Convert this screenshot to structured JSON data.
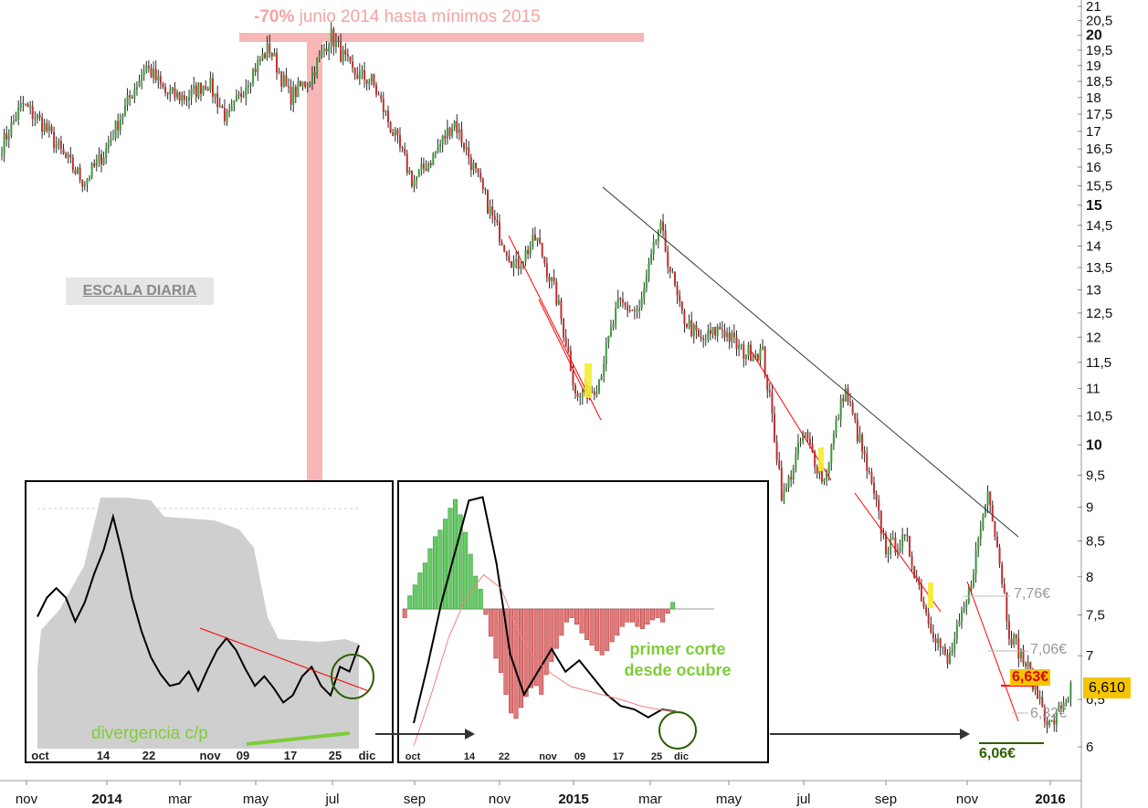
{
  "headline": {
    "bold": "-70%",
    "text": " junio 2014 hasta mínimos 2015"
  },
  "scale_label": "ESCALA DIARIA",
  "last_price": "6,610",
  "levels": {
    "l776": "7,76€",
    "l706": "7,06€",
    "l663": "6,63€",
    "l632": "6,32€",
    "l606": "6,06€"
  },
  "notes": {
    "divergence": "divergencia c/p",
    "first_cross": "primer corte desde ocubre"
  },
  "colors": {
    "up": "#3a9a3a",
    "down": "#c03030",
    "trend_red": "#ff0000",
    "trend_black": "#333333",
    "headline": "#f4a3a3",
    "level_grey": "#999999",
    "price_tag": "#f4c500",
    "hist_up": "#66cc66",
    "hist_down": "#e07a7a",
    "circle": "#2e5e00"
  },
  "chart_data": [
    {
      "type": "line",
      "title": "",
      "x_ticks": [
        "nov",
        "2014",
        "mar",
        "may",
        "jul",
        "sep",
        "nov",
        "2015",
        "mar",
        "may",
        "jul",
        "sep",
        "nov",
        "2016"
      ],
      "y_ticks": [
        "21",
        "20,5",
        "20",
        "19,5",
        "19",
        "18,5",
        "18",
        "17,5",
        "17",
        "16,5",
        "16",
        "15,5",
        "15",
        "14,5",
        "14",
        "13,5",
        "13",
        "12,5",
        "12",
        "11,5",
        "11",
        "10,5",
        "10",
        "9,5",
        "9",
        "8,5",
        "8",
        "7,5",
        "7",
        "6,5",
        "6"
      ],
      "bold_y_ticks": [
        "20",
        "15",
        "10"
      ],
      "y_scale": "log",
      "ylim": [
        5.8,
        21.2
      ],
      "grid": false,
      "series": [
        {
          "values": [
            16.6,
            17.8,
            17.2,
            16.3,
            15.6,
            16.4,
            17.7,
            19.0,
            18.1,
            18.0,
            18.5,
            17.3,
            18.6,
            19.6,
            18.0,
            18.6,
            20.0,
            18.8,
            18.5,
            17.0,
            15.6,
            16.3,
            17.3,
            15.9,
            14.5,
            13.5,
            14.2,
            12.8,
            10.8,
            11.1,
            12.7,
            12.5,
            14.5,
            12.5,
            11.9,
            12.2,
            11.7,
            11.7,
            9.1,
            10.2,
            9.4,
            11.0,
            9.7,
            8.4,
            8.5,
            7.5,
            6.9,
            7.7,
            9.3,
            7.3,
            6.8,
            6.2,
            6.61
          ]
        }
      ],
      "annotations": [
        "Trend lines drawn; horizontal levels 7,76 / 7,06 / 6,63 / 6,32 / 6,06"
      ]
    },
    {
      "type": "line",
      "title": "",
      "x_ticks": [
        "oct",
        "14",
        "22",
        "nov",
        "09",
        "17",
        "25",
        "dic"
      ],
      "ylim": [
        0,
        100
      ],
      "series": [
        {
          "values": [
            50,
            58,
            62,
            58,
            48,
            56,
            68,
            78,
            92,
            76,
            58,
            44,
            33,
            26,
            21,
            22,
            27,
            19,
            28,
            36,
            41,
            36,
            28,
            21,
            25,
            20,
            14,
            17,
            25,
            29,
            21,
            17,
            29,
            27,
            38
          ]
        },
        {
          "values": [
            42,
            50,
            80,
            85,
            96,
            98,
            99,
            98,
            97,
            96,
            95,
            93,
            90,
            85,
            70,
            55,
            42,
            38,
            36,
            35,
            35,
            34,
            35,
            36
          ]
        }
      ]
    },
    {
      "type": "bar",
      "title": "",
      "x_ticks": [
        "oct",
        "14",
        "22",
        "nov",
        "09",
        "17",
        "25",
        "dic"
      ],
      "ylim": [
        -1.2,
        1.2
      ],
      "series": [
        {
          "values": [
            -0.08,
            0.12,
            0.22,
            0.33,
            0.42,
            0.55,
            0.66,
            0.72,
            0.82,
            0.92,
            1.0,
            0.86,
            0.7,
            0.5,
            0.3,
            0.18,
            -0.05,
            -0.25,
            -0.45,
            -0.58,
            -0.78,
            -0.95,
            -1.0,
            -0.9,
            -0.8,
            -0.72,
            -0.7,
            -0.78,
            -0.6,
            -0.48,
            -0.36,
            -0.24,
            -0.12,
            -0.08,
            -0.14,
            -0.22,
            -0.28,
            -0.33,
            -0.38,
            -0.42,
            -0.38,
            -0.3,
            -0.24,
            -0.16,
            -0.12,
            -0.12,
            -0.16,
            -0.18,
            -0.14,
            -0.1,
            -0.08,
            -0.12,
            -0.04,
            0.06
          ]
        },
        {
          "values": [
            -1.0,
            -0.5,
            0.05,
            0.5,
            0.95,
            0.98,
            0.4,
            -0.4,
            -0.75,
            -0.55,
            -0.35,
            -0.55,
            -0.45,
            -0.6,
            -0.75,
            -0.85,
            -0.88,
            -0.95,
            -0.88,
            -0.9
          ]
        },
        {
          "values": [
            -1.2,
            -0.75,
            -0.25,
            0.1,
            0.3,
            0.18,
            -0.2,
            -0.45,
            -0.58,
            -0.68,
            -0.72,
            -0.76,
            -0.8,
            -0.85,
            -0.88,
            -0.9
          ]
        }
      ]
    }
  ]
}
